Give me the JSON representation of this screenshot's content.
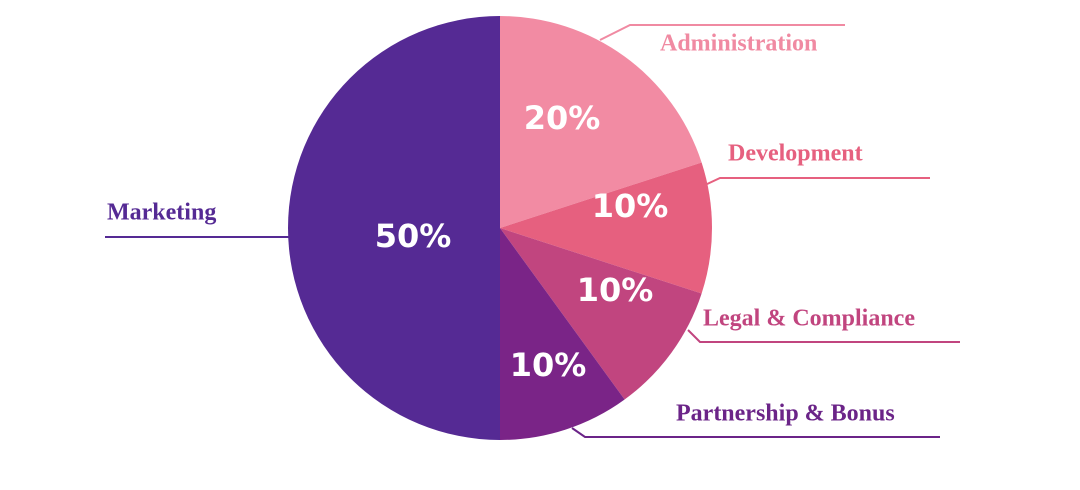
{
  "chart_data": {
    "type": "pie",
    "categories": [
      "Administration",
      "Development",
      "Legal & Compliance",
      "Partnership & Bonus",
      "Marketing"
    ],
    "values": [
      20,
      10,
      10,
      10,
      50
    ],
    "value_labels": [
      "20%",
      "10%",
      "10%",
      "10%",
      "50%"
    ],
    "colors": [
      "#f28ba3",
      "#e6607f",
      "#c1457f",
      "#7a2487",
      "#552a94"
    ]
  }
}
